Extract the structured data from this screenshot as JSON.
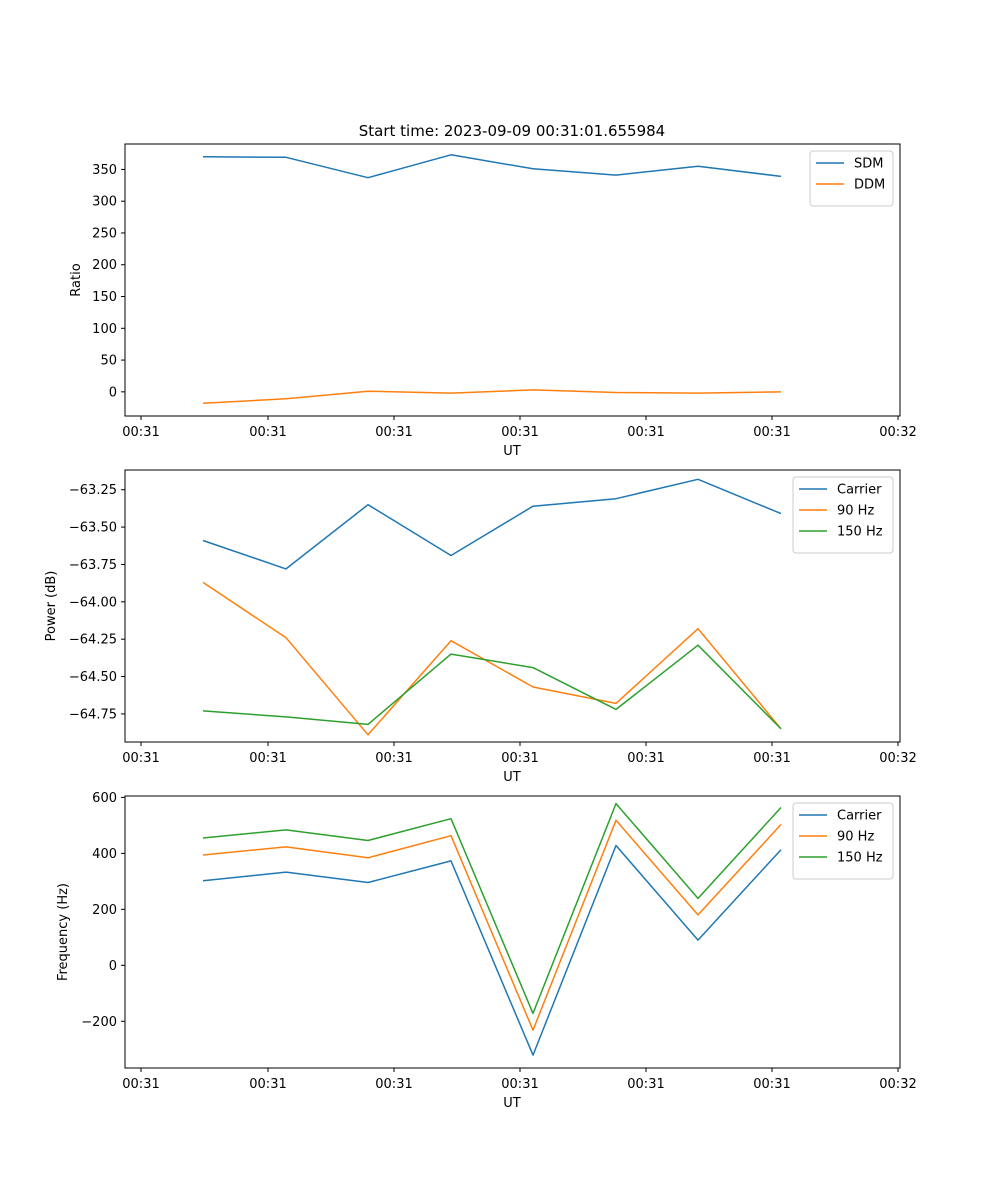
{
  "figure": {
    "title": "Start time: 2023-09-09 00:31:01.655984"
  },
  "chart_data": [
    {
      "type": "line",
      "xlabel": "UT",
      "ylabel": "Ratio",
      "x_ticks": [
        "00:31",
        "00:31",
        "00:31",
        "00:31",
        "00:31",
        "00:31",
        "00:32"
      ],
      "y_ticks": [
        "0",
        "50",
        "100",
        "150",
        "200",
        "250",
        "300",
        "350"
      ],
      "ylim": [
        -38,
        390
      ],
      "legend_position": "top-right",
      "series": [
        {
          "name": "SDM",
          "color": "#1f77b4",
          "values": [
            370,
            369,
            337,
            373,
            351,
            341,
            355,
            339
          ]
        },
        {
          "name": "DDM",
          "color": "#ff7f0e",
          "values": [
            -18,
            -11,
            1,
            -2,
            3,
            -1,
            -2,
            0
          ]
        }
      ]
    },
    {
      "type": "line",
      "xlabel": "UT",
      "ylabel": "Power (dB)",
      "x_ticks": [
        "00:31",
        "00:31",
        "00:31",
        "00:31",
        "00:31",
        "00:31",
        "00:32"
      ],
      "y_ticks": [
        "−64.75",
        "−64.50",
        "−64.25",
        "−64.00",
        "−63.75",
        "−63.50",
        "−63.25"
      ],
      "ylim": [
        -64.938,
        -63.118
      ],
      "legend_position": "top-right",
      "series": [
        {
          "name": "Carrier",
          "color": "#1f77b4",
          "values": [
            -63.59,
            -63.78,
            -63.35,
            -63.69,
            -63.36,
            -63.31,
            -63.18,
            -63.41
          ]
        },
        {
          "name": "90 Hz",
          "color": "#ff7f0e",
          "values": [
            -63.87,
            -64.24,
            -64.89,
            -64.26,
            -64.57,
            -64.68,
            -64.18,
            -64.85
          ]
        },
        {
          "name": "150 Hz",
          "color": "#2ca02c",
          "values": [
            -64.73,
            -64.77,
            -64.82,
            -64.35,
            -64.44,
            -64.72,
            -64.29,
            -64.85
          ]
        }
      ]
    },
    {
      "type": "line",
      "xlabel": "UT",
      "ylabel": "Frequency (Hz)",
      "x_ticks": [
        "00:31",
        "00:31",
        "00:31",
        "00:31",
        "00:31",
        "00:31",
        "00:32"
      ],
      "y_ticks": [
        "−200",
        "0",
        "200",
        "400",
        "600"
      ],
      "ylim": [
        -367,
        605
      ],
      "legend_position": "top-right",
      "series": [
        {
          "name": "Carrier",
          "color": "#1f77b4",
          "values": [
            302,
            333,
            296,
            373,
            -321,
            428,
            90,
            413
          ]
        },
        {
          "name": "90 Hz",
          "color": "#ff7f0e",
          "values": [
            394,
            423,
            384,
            463,
            -232,
            518,
            180,
            503
          ]
        },
        {
          "name": "150 Hz",
          "color": "#2ca02c",
          "values": [
            455,
            484,
            446,
            524,
            -172,
            578,
            239,
            564
          ]
        }
      ]
    }
  ]
}
